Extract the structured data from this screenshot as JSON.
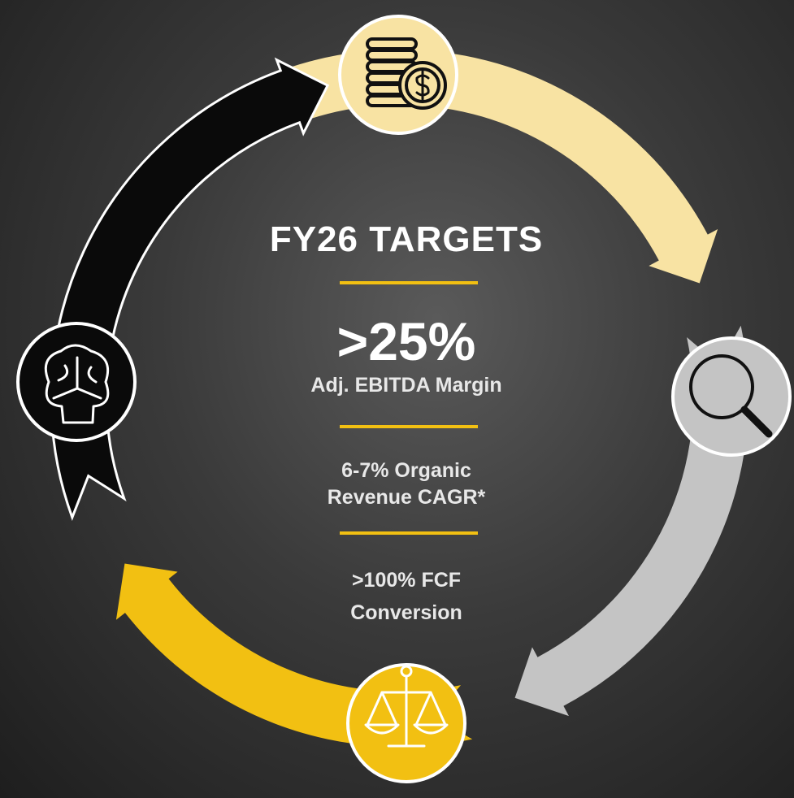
{
  "title": "FY26 TARGETS",
  "highlight": {
    "value": ">25%",
    "label": "Adj. EBITDA Margin"
  },
  "targets": [
    {
      "lines": [
        "6-7% Organic",
        "Revenue CAGR*"
      ]
    },
    {
      "lines": [
        ">100% FCF",
        "Conversion"
      ]
    }
  ]
}
